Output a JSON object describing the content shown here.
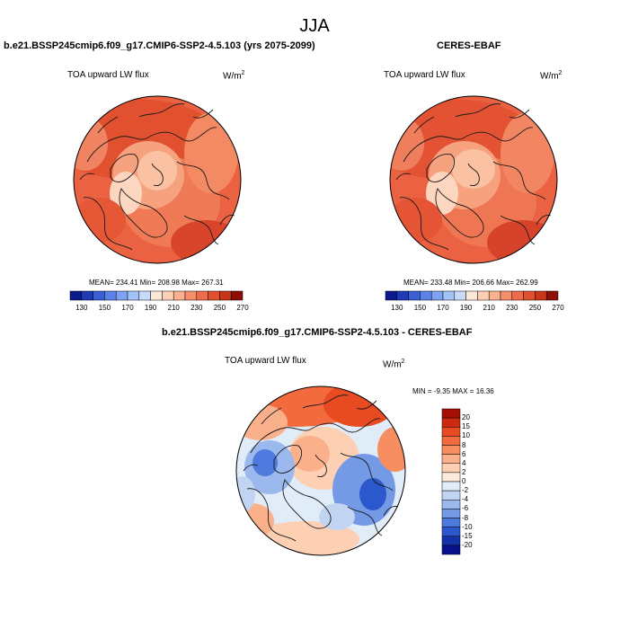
{
  "figure": {
    "title": "JJA",
    "units_base": "W/m",
    "units_exp": "2"
  },
  "panels": [
    {
      "title": "b.e21.BSSP245cmip6.f09_g17.CMIP6-SSP2-4.5.103 (yrs 2075-2099)",
      "variable": "TOA upward LW flux",
      "stats": "MEAN= 234.41  Min= 208.98  Max= 267.31"
    },
    {
      "title": "CERES-EBAF",
      "variable": "TOA upward LW flux",
      "stats": "MEAN= 233.48  Min= 206.66  Max= 262.99"
    },
    {
      "title": "b.e21.BSSP245cmip6.f09_g17.CMIP6-SSP2-4.5.103 - CERES-EBAF",
      "variable": "TOA upward LW flux",
      "stats": "MIN =  -9.35 MAX =  16.36"
    }
  ],
  "colorbar_abs": {
    "tick_labels": [
      "130",
      "150",
      "170",
      "190",
      "210",
      "230",
      "250",
      "270"
    ],
    "colors": [
      "#0a1a8c",
      "#1f3bb3",
      "#3b5fd6",
      "#5b82e8",
      "#7ea3f2",
      "#a3c2f7",
      "#c8daf9",
      "#fde8d8",
      "#fdd0b5",
      "#fbb08f",
      "#f78e6b",
      "#ef6c4a",
      "#e2502e",
      "#c83518",
      "#8e0d04"
    ]
  },
  "colorbar_diff": {
    "tick_labels": [
      "20",
      "15",
      "10",
      "8",
      "6",
      "4",
      "2",
      "0",
      "-2",
      "-4",
      "-6",
      "-8",
      "-10",
      "-15",
      "-20"
    ],
    "colors": [
      "#a50f06",
      "#cc2a10",
      "#e84a22",
      "#f26a3d",
      "#f78e62",
      "#fbb08c",
      "#fdd0b4",
      "#fdeadb",
      "#e1ecf9",
      "#c1d5f3",
      "#9cb9ee",
      "#749ae6",
      "#4e7ade",
      "#2b58cc",
      "#1432a8",
      "#07128a"
    ]
  }
}
